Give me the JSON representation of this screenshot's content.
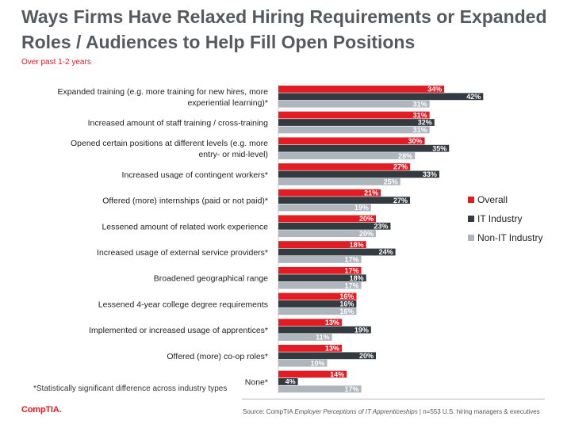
{
  "page": {
    "title": "Ways Firms Have Relaxed Hiring Requirements or Expanded Roles / Audiences to Help Fill Open Positions",
    "subtitle": "Over past 1-2 years",
    "footnote": "*Statistically significant difference across industry types",
    "logo": "CompTIA.",
    "source_prefix": "Source: CompTIA ",
    "source_italic": "Employer Perceptions of IT Apprenticeships",
    "source_suffix": " | n=553 U.S. hiring managers & executives"
  },
  "chart_data": {
    "type": "bar",
    "orientation": "horizontal",
    "categories": [
      "Expanded training (e.g. more training for new hires, more experiential learning)*",
      "Increased amount of staff training / cross-training",
      "Opened certain positions at different levels (e.g. more entry- or mid-level)",
      "Increased usage of contingent workers*",
      "Offered (more) internships (paid or not paid)*",
      "Lessened amount of related work experience",
      "Increased usage of external service providers*",
      "Broadened geographical range",
      "Lessened 4-year college degree requirements",
      "Implemented or increased usage of apprentices*",
      "Offered (more) co-op roles*",
      "None*"
    ],
    "category_lines": [
      [
        "Expanded training (e.g. more training for new hires, more",
        "experiential learning)*"
      ],
      [
        "Increased amount of staff training / cross-training"
      ],
      [
        "Opened certain positions at different levels (e.g. more",
        "entry- or mid-level)"
      ],
      [
        "Increased usage of contingent workers*"
      ],
      [
        "Offered (more) internships (paid or not paid)*"
      ],
      [
        "Lessened amount of related work experience"
      ],
      [
        "Increased usage of external service providers*"
      ],
      [
        "Broadened geographical range"
      ],
      [
        "Lessened 4-year college degree requirements"
      ],
      [
        "Implemented or increased usage of apprentices*"
      ],
      [
        "Offered (more) co-op roles*"
      ],
      [
        "None*"
      ]
    ],
    "series": [
      {
        "name": "Overall",
        "color": "#e31b23",
        "label_color": "#ffffff",
        "values": [
          34,
          31,
          30,
          27,
          21,
          20,
          18,
          17,
          16,
          13,
          13,
          14
        ]
      },
      {
        "name": "IT Industry",
        "color": "#333a40",
        "label_color": "#ffffff",
        "values": [
          42,
          32,
          35,
          33,
          27,
          23,
          24,
          18,
          16,
          19,
          20,
          4
        ]
      },
      {
        "name": "Non-IT Industry",
        "color": "#aeb5bc",
        "label_color": "#ffffff",
        "values": [
          31,
          31,
          28,
          25,
          19,
          20,
          17,
          17,
          16,
          11,
          10,
          17
        ]
      }
    ],
    "value_suffix": "%",
    "legend_position": "right",
    "grid": false,
    "axis_shown": false
  }
}
